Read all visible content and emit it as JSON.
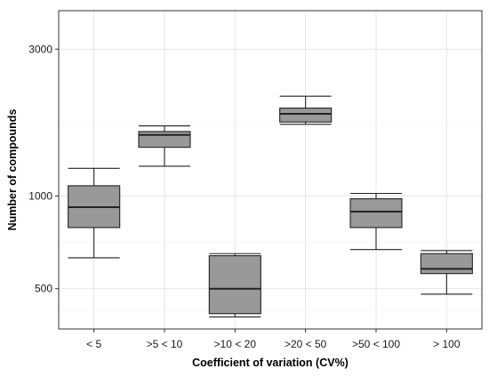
{
  "chart_data": {
    "type": "box",
    "title": "",
    "xlabel": "Coefficient of variation (CV%)",
    "ylabel": "Number of compounds",
    "y_scale": "log",
    "ylim": [
      370,
      4000
    ],
    "y_ticks": [
      500,
      1000,
      3000
    ],
    "y_tick_labels": [
      "500",
      "1000",
      "3000"
    ],
    "grid": true,
    "legend": "none",
    "box_fill": "#999999",
    "categories": [
      "< 5",
      ">5 < 10",
      ">10 < 20",
      ">20 < 50",
      ">50 < 100",
      "> 100"
    ],
    "boxes": [
      {
        "category": "< 5",
        "min": 630,
        "q1": 790,
        "median": 920,
        "q3": 1080,
        "max": 1230
      },
      {
        "category": ">5 < 10",
        "min": 1250,
        "q1": 1440,
        "median": 1580,
        "q3": 1620,
        "max": 1690
      },
      {
        "category": ">10 < 20",
        "min": 405,
        "q1": 415,
        "median": 500,
        "q3": 640,
        "max": 650
      },
      {
        "category": ">20 < 50",
        "min": 1710,
        "q1": 1740,
        "median": 1850,
        "q3": 1930,
        "max": 2110
      },
      {
        "category": ">50 < 100",
        "min": 670,
        "q1": 790,
        "median": 890,
        "q3": 980,
        "max": 1020
      },
      {
        "category": "> 100",
        "min": 480,
        "q1": 560,
        "median": 580,
        "q3": 650,
        "max": 665
      }
    ]
  }
}
